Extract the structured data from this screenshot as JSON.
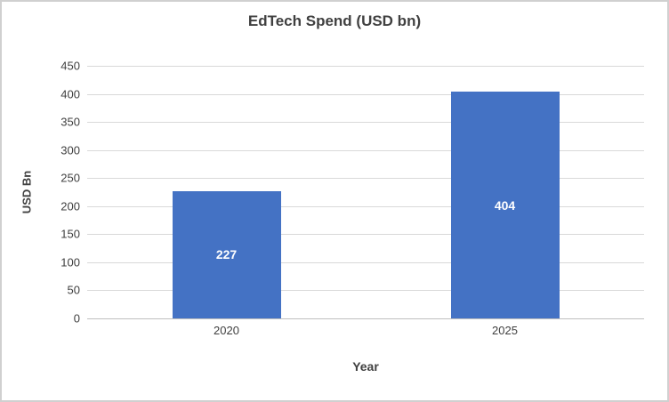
{
  "chart_data": {
    "type": "bar",
    "title": "EdTech Spend (USD bn)",
    "categories": [
      "2020",
      "2025"
    ],
    "values": [
      227,
      404
    ],
    "value_labels": [
      "227",
      "404"
    ],
    "xlabel": "Year",
    "ylabel": "USD Bn",
    "ylim": [
      0,
      450
    ],
    "yticks": [
      0,
      50,
      100,
      150,
      200,
      250,
      300,
      350,
      400,
      450
    ],
    "grid": true,
    "legend": false,
    "colors": {
      "bar": "#4472C4",
      "value_label": "#FFFFFF",
      "gridline": "#D9D9D9",
      "axis_line": "#BFBFBF",
      "text": "#404040",
      "border": "#D0D0D0",
      "background": "#FFFFFF"
    }
  }
}
